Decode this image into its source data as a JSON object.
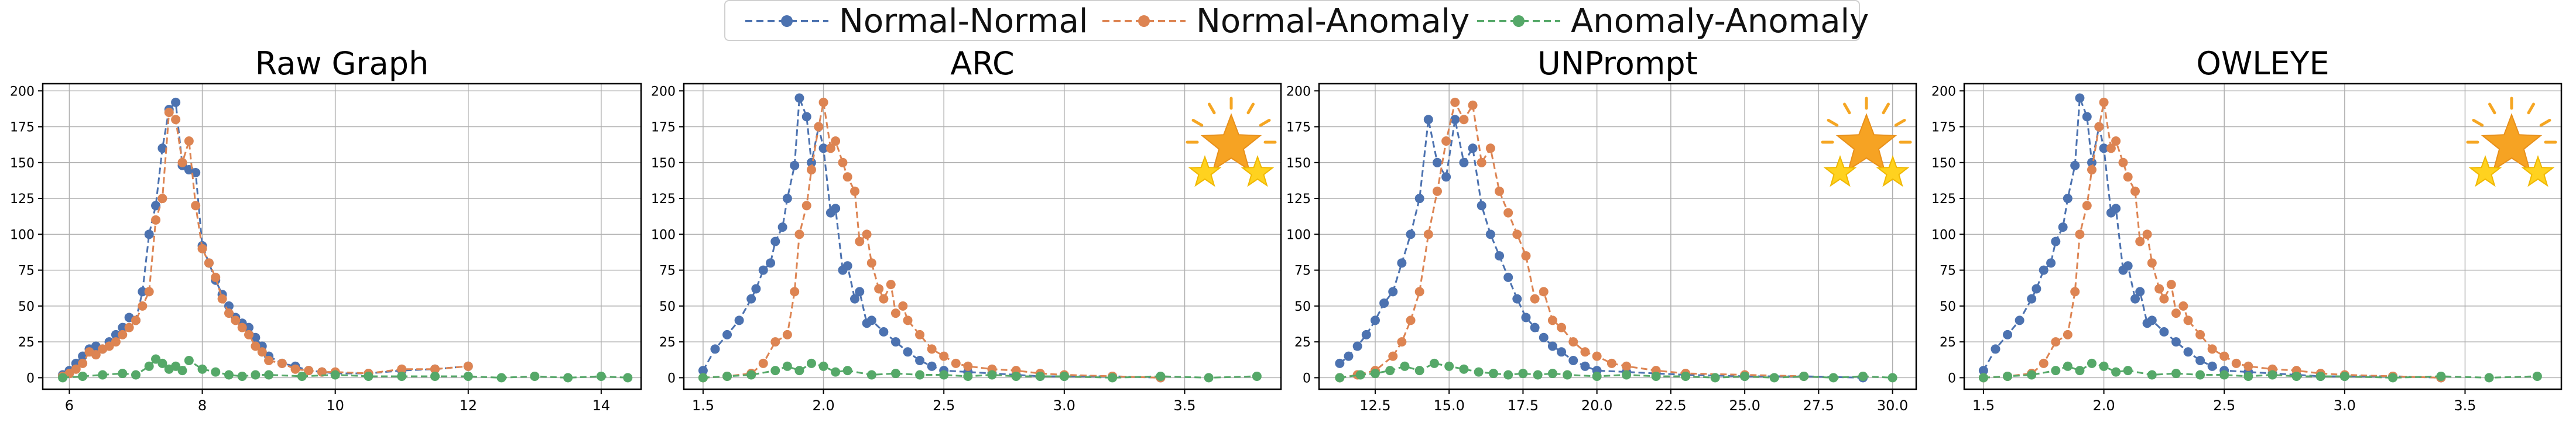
{
  "legend": {
    "position": "top-center",
    "items": [
      {
        "label": "Normal-Normal",
        "color": "#4c72b0"
      },
      {
        "label": "Normal-Anomaly",
        "color": "#dd8452"
      },
      {
        "label": "Anomaly-Anomaly",
        "color": "#55a868"
      }
    ]
  },
  "chart_data": [
    {
      "type": "line",
      "title": "Raw Graph",
      "badge": false,
      "xlim": [
        5.6,
        14.6
      ],
      "ylim": [
        -8,
        205
      ],
      "xticks": [
        6,
        8,
        10,
        12,
        14
      ],
      "xtick_labels": [
        "6",
        "8",
        "10",
        "12",
        "14"
      ],
      "yticks": [
        0,
        25,
        50,
        75,
        100,
        125,
        150,
        175,
        200
      ],
      "ytick_labels": [
        "0",
        "25",
        "50",
        "75",
        "100",
        "125",
        "150",
        "175",
        "200"
      ],
      "grid": true,
      "series": [
        {
          "name": "Normal-Normal",
          "color": "#4c72b0",
          "x": [
            5.9,
            6.0,
            6.1,
            6.2,
            6.3,
            6.4,
            6.5,
            6.6,
            6.7,
            6.8,
            6.9,
            7.0,
            7.1,
            7.2,
            7.3,
            7.4,
            7.5,
            7.6,
            7.7,
            7.8,
            7.9,
            8.0,
            8.1,
            8.2,
            8.3,
            8.4,
            8.5,
            8.6,
            8.7,
            8.8,
            8.9,
            9.0,
            9.2,
            9.4,
            9.6,
            9.8,
            10.0,
            10.5,
            11.0,
            11.5,
            12.0
          ],
          "y": [
            2,
            5,
            10,
            15,
            20,
            22,
            20,
            25,
            30,
            35,
            42,
            40,
            60,
            100,
            120,
            160,
            187,
            192,
            148,
            145,
            143,
            92,
            80,
            68,
            58,
            50,
            42,
            38,
            35,
            28,
            22,
            15,
            10,
            8,
            5,
            4,
            3,
            3,
            5,
            6,
            8
          ]
        },
        {
          "name": "Normal-Anomaly",
          "color": "#dd8452",
          "x": [
            5.9,
            6.0,
            6.1,
            6.2,
            6.3,
            6.4,
            6.5,
            6.6,
            6.7,
            6.8,
            6.9,
            7.0,
            7.1,
            7.2,
            7.3,
            7.4,
            7.5,
            7.6,
            7.7,
            7.8,
            7.9,
            8.0,
            8.1,
            8.2,
            8.3,
            8.4,
            8.5,
            8.6,
            8.7,
            8.8,
            8.9,
            9.0,
            9.2,
            9.4,
            9.6,
            9.8,
            10.0,
            10.5,
            11.0,
            11.5,
            12.0
          ],
          "y": [
            1,
            3,
            6,
            10,
            18,
            16,
            20,
            22,
            25,
            30,
            35,
            40,
            50,
            60,
            110,
            125,
            185,
            180,
            150,
            165,
            120,
            90,
            80,
            70,
            55,
            45,
            40,
            35,
            30,
            22,
            18,
            12,
            10,
            6,
            5,
            4,
            4,
            3,
            6,
            6,
            8
          ]
        },
        {
          "name": "Anomaly-Anomaly",
          "color": "#55a868",
          "x": [
            5.9,
            6.2,
            6.5,
            6.8,
            7.0,
            7.2,
            7.3,
            7.4,
            7.5,
            7.6,
            7.7,
            7.8,
            8.0,
            8.2,
            8.4,
            8.6,
            8.8,
            9.0,
            9.5,
            10.0,
            10.5,
            11.0,
            11.5,
            12.0,
            12.5,
            13.0,
            13.5,
            14.0,
            14.4
          ],
          "y": [
            0,
            1,
            2,
            3,
            2,
            8,
            13,
            10,
            6,
            8,
            5,
            12,
            6,
            4,
            2,
            1,
            2,
            2,
            1,
            2,
            1,
            1,
            1,
            1,
            0,
            1,
            0,
            1,
            0
          ]
        }
      ]
    },
    {
      "type": "line",
      "title": "ARC",
      "badge": true,
      "xlim": [
        1.42,
        3.9
      ],
      "ylim": [
        -8,
        205
      ],
      "xticks": [
        1.5,
        2.0,
        2.5,
        3.0,
        3.5
      ],
      "xtick_labels": [
        "1.5",
        "2.0",
        "2.5",
        "3.0",
        "3.5"
      ],
      "yticks": [
        0,
        25,
        50,
        75,
        100,
        125,
        150,
        175,
        200
      ],
      "ytick_labels": [
        "0",
        "25",
        "50",
        "75",
        "100",
        "125",
        "150",
        "175",
        "200"
      ],
      "grid": true,
      "series": [
        {
          "name": "Normal-Normal",
          "color": "#4c72b0",
          "x": [
            1.5,
            1.55,
            1.6,
            1.65,
            1.7,
            1.72,
            1.75,
            1.78,
            1.8,
            1.83,
            1.85,
            1.88,
            1.9,
            1.93,
            1.95,
            1.98,
            2.0,
            2.03,
            2.05,
            2.08,
            2.1,
            2.13,
            2.15,
            2.18,
            2.2,
            2.25,
            2.3,
            2.35,
            2.4,
            2.45,
            2.5,
            2.6,
            2.7,
            2.8,
            2.9,
            3.0,
            3.2,
            3.4
          ],
          "y": [
            5,
            20,
            30,
            40,
            55,
            62,
            75,
            80,
            95,
            105,
            125,
            148,
            195,
            182,
            150,
            175,
            160,
            115,
            118,
            75,
            78,
            55,
            60,
            38,
            40,
            32,
            25,
            18,
            12,
            8,
            5,
            4,
            3,
            2,
            1,
            1,
            1,
            0
          ]
        },
        {
          "name": "Normal-Anomaly",
          "color": "#dd8452",
          "x": [
            1.5,
            1.6,
            1.7,
            1.75,
            1.8,
            1.85,
            1.88,
            1.9,
            1.93,
            1.95,
            1.98,
            2.0,
            2.03,
            2.05,
            2.08,
            2.1,
            2.13,
            2.15,
            2.18,
            2.2,
            2.23,
            2.25,
            2.28,
            2.3,
            2.33,
            2.35,
            2.4,
            2.45,
            2.5,
            2.55,
            2.6,
            2.7,
            2.8,
            2.9,
            3.0,
            3.2,
            3.4
          ],
          "y": [
            0,
            1,
            3,
            10,
            25,
            30,
            60,
            100,
            120,
            145,
            175,
            192,
            160,
            165,
            150,
            140,
            130,
            95,
            100,
            80,
            62,
            55,
            65,
            45,
            50,
            40,
            30,
            20,
            15,
            10,
            8,
            6,
            5,
            3,
            2,
            1,
            0
          ]
        },
        {
          "name": "Anomaly-Anomaly",
          "color": "#55a868",
          "x": [
            1.5,
            1.6,
            1.7,
            1.8,
            1.85,
            1.9,
            1.95,
            2.0,
            2.05,
            2.1,
            2.2,
            2.3,
            2.4,
            2.5,
            2.6,
            2.7,
            2.8,
            2.9,
            3.0,
            3.2,
            3.4,
            3.6,
            3.8
          ],
          "y": [
            0,
            1,
            2,
            5,
            8,
            5,
            10,
            8,
            4,
            5,
            2,
            3,
            2,
            2,
            1,
            2,
            1,
            1,
            1,
            0,
            1,
            0,
            1
          ]
        }
      ]
    },
    {
      "type": "line",
      "title": "UNPrompt",
      "badge": true,
      "xlim": [
        10.6,
        30.8
      ],
      "ylim": [
        -8,
        205
      ],
      "xticks": [
        12.5,
        15.0,
        17.5,
        20.0,
        22.5,
        25.0,
        27.5,
        30.0
      ],
      "xtick_labels": [
        "12.5",
        "15.0",
        "17.5",
        "20.0",
        "22.5",
        "25.0",
        "27.5",
        "30.0"
      ],
      "yticks": [
        0,
        25,
        50,
        75,
        100,
        125,
        150,
        175,
        200
      ],
      "ytick_labels": [
        "0",
        "25",
        "50",
        "75",
        "100",
        "125",
        "150",
        "175",
        "200"
      ],
      "grid": true,
      "series": [
        {
          "name": "Normal-Normal",
          "color": "#4c72b0",
          "x": [
            11.3,
            11.6,
            11.9,
            12.2,
            12.5,
            12.8,
            13.1,
            13.4,
            13.7,
            14.0,
            14.3,
            14.6,
            14.9,
            15.2,
            15.5,
            15.8,
            16.1,
            16.4,
            16.7,
            17.0,
            17.3,
            17.6,
            17.9,
            18.2,
            18.5,
            18.8,
            19.2,
            19.6,
            20.0,
            21.0,
            22.0,
            23.0,
            25.0,
            27.0,
            29.0
          ],
          "y": [
            10,
            15,
            22,
            30,
            40,
            52,
            60,
            80,
            100,
            125,
            180,
            150,
            140,
            180,
            150,
            160,
            120,
            100,
            85,
            70,
            55,
            42,
            35,
            28,
            22,
            18,
            12,
            8,
            5,
            4,
            3,
            2,
            1,
            1,
            0
          ]
        },
        {
          "name": "Normal-Anomaly",
          "color": "#dd8452",
          "x": [
            11.3,
            11.9,
            12.5,
            13.1,
            13.4,
            13.7,
            14.0,
            14.3,
            14.6,
            14.9,
            15.2,
            15.5,
            15.8,
            16.1,
            16.4,
            16.7,
            17.0,
            17.3,
            17.6,
            17.9,
            18.2,
            18.5,
            18.8,
            19.2,
            19.6,
            20.0,
            20.5,
            21.0,
            22.0,
            23.0,
            25.0,
            27.0
          ],
          "y": [
            0,
            2,
            5,
            15,
            25,
            40,
            60,
            100,
            130,
            165,
            192,
            180,
            190,
            150,
            160,
            130,
            115,
            100,
            85,
            55,
            60,
            40,
            35,
            25,
            18,
            15,
            10,
            8,
            5,
            3,
            2,
            1
          ]
        },
        {
          "name": "Anomaly-Anomaly",
          "color": "#55a868",
          "x": [
            11.3,
            12.0,
            12.5,
            13.0,
            13.5,
            14.0,
            14.5,
            15.0,
            15.5,
            16.0,
            16.5,
            17.0,
            17.5,
            18.0,
            18.5,
            19.0,
            20.0,
            21.0,
            22.0,
            23.0,
            24.0,
            25.0,
            26.0,
            27.0,
            28.0,
            29.0,
            30.0
          ],
          "y": [
            0,
            2,
            3,
            5,
            8,
            5,
            10,
            8,
            6,
            4,
            3,
            2,
            3,
            2,
            3,
            2,
            1,
            2,
            1,
            1,
            0,
            1,
            0,
            1,
            0,
            1,
            0
          ]
        }
      ]
    },
    {
      "type": "line",
      "title": "OWLEYE",
      "badge": true,
      "xlim": [
        1.42,
        3.9
      ],
      "ylim": [
        -8,
        205
      ],
      "xticks": [
        1.5,
        2.0,
        2.5,
        3.0,
        3.5
      ],
      "xtick_labels": [
        "1.5",
        "2.0",
        "2.5",
        "3.0",
        "3.5"
      ],
      "yticks": [
        0,
        25,
        50,
        75,
        100,
        125,
        150,
        175,
        200
      ],
      "ytick_labels": [
        "0",
        "25",
        "50",
        "75",
        "100",
        "125",
        "150",
        "175",
        "200"
      ],
      "grid": true,
      "series": [
        {
          "name": "Normal-Normal",
          "color": "#4c72b0",
          "x": [
            1.5,
            1.55,
            1.6,
            1.65,
            1.7,
            1.72,
            1.75,
            1.78,
            1.8,
            1.83,
            1.85,
            1.88,
            1.9,
            1.93,
            1.95,
            1.98,
            2.0,
            2.03,
            2.05,
            2.08,
            2.1,
            2.13,
            2.15,
            2.18,
            2.2,
            2.25,
            2.3,
            2.35,
            2.4,
            2.45,
            2.5,
            2.6,
            2.7,
            2.8,
            2.9,
            3.0,
            3.2,
            3.4
          ],
          "y": [
            5,
            20,
            30,
            40,
            55,
            62,
            75,
            80,
            95,
            105,
            125,
            148,
            195,
            182,
            150,
            175,
            160,
            115,
            118,
            75,
            78,
            55,
            60,
            38,
            40,
            32,
            25,
            18,
            12,
            8,
            5,
            4,
            3,
            2,
            1,
            1,
            1,
            0
          ]
        },
        {
          "name": "Normal-Anomaly",
          "color": "#dd8452",
          "x": [
            1.5,
            1.6,
            1.7,
            1.75,
            1.8,
            1.85,
            1.88,
            1.9,
            1.93,
            1.95,
            1.98,
            2.0,
            2.03,
            2.05,
            2.08,
            2.1,
            2.13,
            2.15,
            2.18,
            2.2,
            2.23,
            2.25,
            2.28,
            2.3,
            2.33,
            2.35,
            2.4,
            2.45,
            2.5,
            2.55,
            2.6,
            2.7,
            2.8,
            2.9,
            3.0,
            3.2,
            3.4
          ],
          "y": [
            0,
            1,
            3,
            10,
            25,
            30,
            60,
            100,
            120,
            145,
            175,
            192,
            160,
            165,
            150,
            140,
            130,
            95,
            100,
            80,
            62,
            55,
            65,
            45,
            50,
            40,
            30,
            20,
            15,
            10,
            8,
            6,
            5,
            3,
            2,
            1,
            0
          ]
        },
        {
          "name": "Anomaly-Anomaly",
          "color": "#55a868",
          "x": [
            1.5,
            1.6,
            1.7,
            1.8,
            1.85,
            1.9,
            1.95,
            2.0,
            2.05,
            2.1,
            2.2,
            2.3,
            2.4,
            2.5,
            2.6,
            2.7,
            2.8,
            2.9,
            3.0,
            3.2,
            3.4,
            3.6,
            3.8
          ],
          "y": [
            0,
            1,
            2,
            5,
            8,
            5,
            10,
            8,
            4,
            5,
            2,
            3,
            2,
            2,
            1,
            2,
            1,
            1,
            1,
            0,
            1,
            0,
            1
          ]
        }
      ]
    }
  ]
}
